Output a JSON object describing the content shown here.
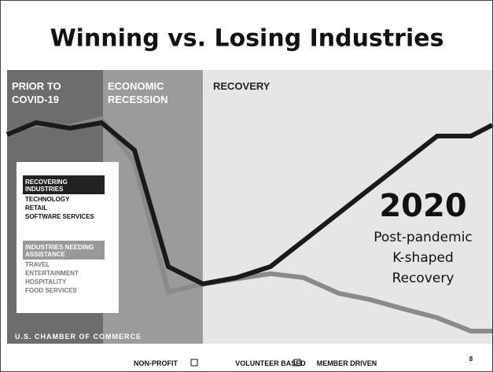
{
  "header": {
    "title": "Winning vs. Losing Industries"
  },
  "phases": [
    {
      "lines": [
        "PRIOR TO",
        "COVID-19"
      ]
    },
    {
      "lines": [
        "ECONOMIC",
        "RECESSION"
      ]
    },
    {
      "lines": [
        "RECOVERY"
      ]
    }
  ],
  "legend": {
    "recovering": {
      "heading": [
        "RECOVERING",
        "INDUSTRIES"
      ],
      "items": [
        "TECHNOLOGY",
        "RETAIL",
        "SOFTWARE SERVICES"
      ]
    },
    "needing": {
      "heading": [
        "INDUSTRIES NEEDING",
        "ASSISTANCE"
      ],
      "items": [
        "TRAVEL",
        "ENTERTAINMENT",
        "HOSPITALITY",
        "FOOD SERVICES"
      ]
    }
  },
  "source": "U.S. CHAMBER OF COMMERCE",
  "callout": {
    "year": "2020",
    "lines": [
      "Post-pandemic",
      "K-shaped",
      "Recovery"
    ]
  },
  "footer": {
    "items": [
      "NON-PROFIT",
      "VOLUNTEER BASED",
      "MEMBER DRIVEN"
    ],
    "page": "8"
  }
}
